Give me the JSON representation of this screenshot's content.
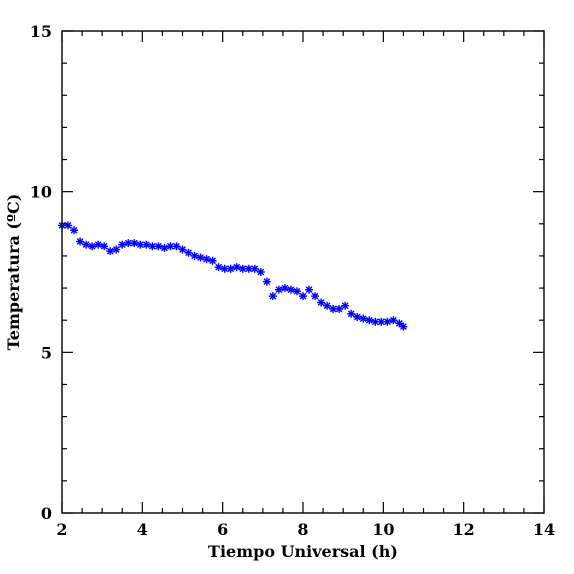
{
  "chart_data": {
    "type": "scatter",
    "title": "",
    "xlabel": "Tiempo Universal (h)",
    "ylabel": "Temperatura (ºC)",
    "xlim": [
      2,
      14
    ],
    "ylim": [
      0,
      15
    ],
    "x_ticks": [
      2,
      4,
      6,
      8,
      10,
      12,
      14
    ],
    "x_tick_labels": [
      "2",
      "4",
      "6",
      "8",
      "10",
      "12",
      "14"
    ],
    "y_ticks": [
      0,
      5,
      10,
      15
    ],
    "y_tick_labels": [
      "0",
      "5",
      "10",
      "15"
    ],
    "grid": false,
    "legend": "none",
    "marker": "asterisk",
    "color": "#0000ff",
    "series": [
      {
        "x": [
          2.0,
          2.15,
          2.3,
          2.45,
          2.6,
          2.75,
          2.9,
          3.05,
          3.2,
          3.35,
          3.5,
          3.65,
          3.8,
          3.95,
          4.1,
          4.25,
          4.4,
          4.55,
          4.7,
          4.85,
          5.0,
          5.15,
          5.3,
          5.45,
          5.6,
          5.75,
          5.9,
          6.05,
          6.2,
          6.35,
          6.5,
          6.65,
          6.8,
          6.95,
          7.1,
          7.25,
          7.4,
          7.55,
          7.7,
          7.85,
          8.0,
          8.15,
          8.3,
          8.45,
          8.6,
          8.75,
          8.9,
          9.05,
          9.2,
          9.35,
          9.5,
          9.65,
          9.8,
          9.95,
          10.1,
          10.25,
          10.4,
          10.5
        ],
        "y": [
          8.95,
          8.95,
          8.8,
          8.45,
          8.35,
          8.3,
          8.35,
          8.3,
          8.15,
          8.2,
          8.35,
          8.4,
          8.4,
          8.35,
          8.35,
          8.3,
          8.3,
          8.25,
          8.3,
          8.3,
          8.2,
          8.1,
          8.0,
          7.95,
          7.9,
          7.85,
          7.65,
          7.6,
          7.6,
          7.65,
          7.6,
          7.6,
          7.6,
          7.5,
          7.2,
          6.75,
          6.95,
          7.0,
          6.95,
          6.9,
          6.75,
          6.95,
          6.75,
          6.55,
          6.45,
          6.35,
          6.35,
          6.45,
          6.2,
          6.1,
          6.05,
          6.0,
          5.95,
          5.95,
          5.95,
          6.0,
          5.9,
          5.8
        ]
      }
    ]
  }
}
